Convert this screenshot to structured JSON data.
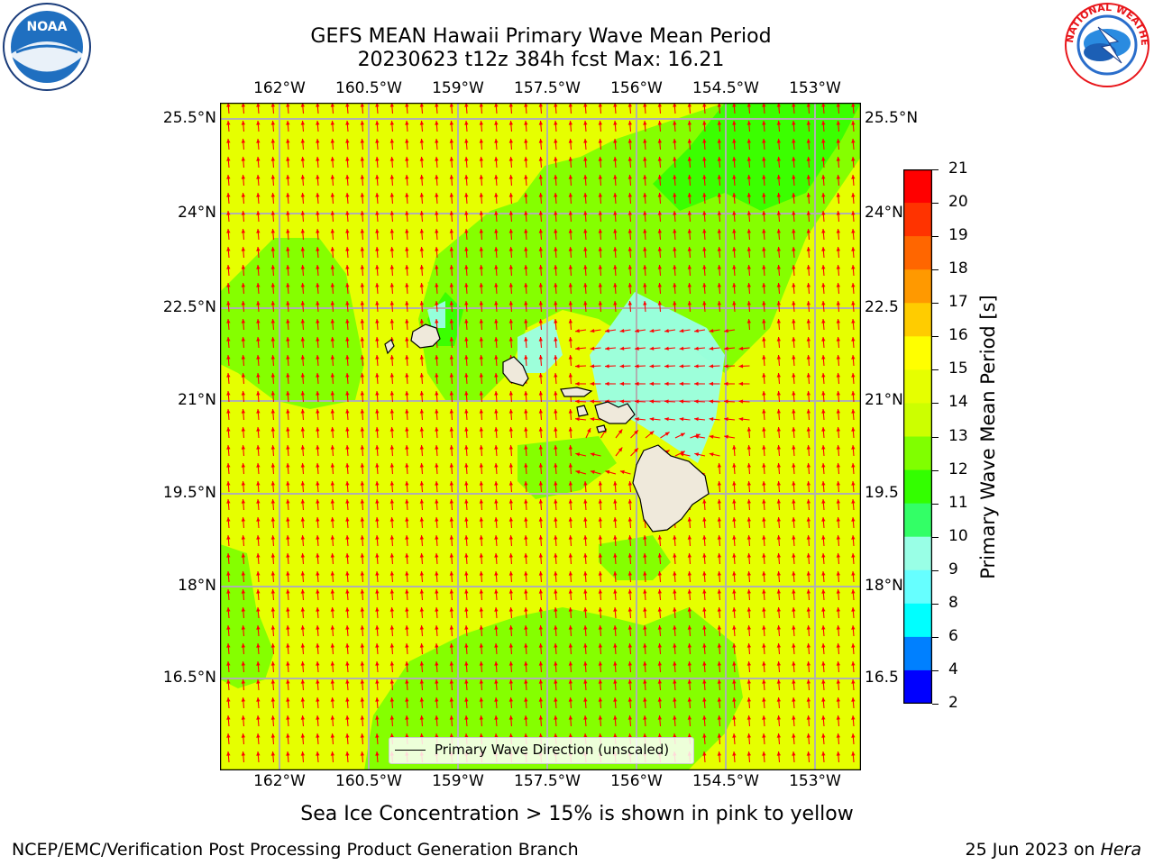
{
  "title": {
    "line1": "GEFS MEAN Hawaii Primary Wave Mean Period",
    "line2": "20230623 t12z 384h fcst   Max: 16.21"
  },
  "logos": {
    "left": {
      "text": "NOAA",
      "ring": "NATIONAL OCEANIC AND ATMOSPHERIC ADMINISTRATION · U.S. DEPARTMENT OF COMMERCE",
      "color": "#1a5aa0"
    },
    "right": {
      "text": "NATIONAL WEATHER SERVICE",
      "color": "#e8161b"
    }
  },
  "map": {
    "lon_labels": [
      "162°W",
      "160.5°W",
      "159°W",
      "157.5°W",
      "156°W",
      "154.5°W",
      "153°W"
    ],
    "lat_labels_left": [
      "25.5°N",
      "24°N",
      "22.5°N",
      "21°N",
      "19.5°N",
      "18°N",
      "16.5°N"
    ],
    "lat_labels_right": [
      "25.5°N",
      "24°N",
      "22.5",
      "21°N",
      "19.5",
      "18°N",
      "16.5"
    ],
    "legend": "Primary Wave Direction (unscaled)",
    "arrow_color": "#ff0000",
    "grid_color": "#b0b0b0"
  },
  "colorbar": {
    "label": "Primary Wave Mean Period [s]",
    "ticks": [
      "21",
      "20",
      "19",
      "18",
      "17",
      "16",
      "15",
      "14",
      "13",
      "12",
      "11",
      "10",
      "9",
      "8",
      "6",
      "4",
      "2"
    ],
    "colors": [
      "#ff0000",
      "#ff3300",
      "#ff6600",
      "#ff9900",
      "#ffcc00",
      "#ffff00",
      "#e6ff00",
      "#ccff00",
      "#80ff00",
      "#33ff00",
      "#33ff66",
      "#99ffe6",
      "#66ffff",
      "#00ffff",
      "#0080ff",
      "#0000ff"
    ]
  },
  "subnote": "Sea Ice Concentration > 15% is shown in pink to yellow",
  "footer": {
    "left": "NCEP/EMC/Verification Post Processing Product Generation Branch",
    "right_date": "25 Jun 2023 on ",
    "right_host": "Hera"
  }
}
